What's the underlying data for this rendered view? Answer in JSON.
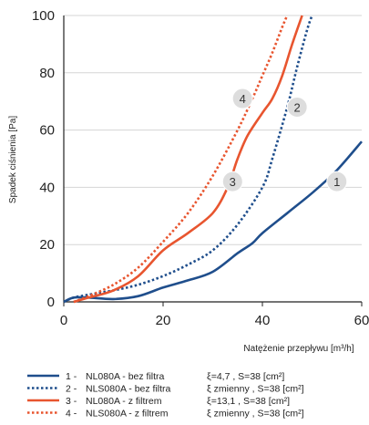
{
  "chart_data": {
    "type": "line",
    "xlabel": "Natężenie przepływu [m³/h]",
    "ylabel": "Spadek ciśnienia [Pa]",
    "xlim": [
      0,
      60
    ],
    "ylim": [
      0,
      100
    ],
    "xticks": [
      0,
      20,
      40,
      60
    ],
    "yticks": [
      0,
      20,
      40,
      60,
      80,
      100
    ],
    "grid": "horizontal",
    "legend_position": "bottom",
    "series": [
      {
        "marker": "1",
        "name": "NL080A - bez filtra",
        "number_label": "1 -",
        "param": "ξ=4,7 , S=38 [cm²]",
        "color": "#1f4e8c",
        "style": "solid",
        "marker_at": [
          55,
          42
        ],
        "x": [
          0,
          2,
          5,
          10,
          15,
          20,
          25,
          30,
          35,
          38,
          40,
          45,
          50,
          55,
          60
        ],
        "y": [
          0,
          1.5,
          1.5,
          1,
          2,
          5,
          7.5,
          10.5,
          17,
          20.5,
          24,
          31,
          38,
          46,
          56
        ]
      },
      {
        "marker": "2",
        "name": "NLS080A - bez filtra",
        "number_label": "2 -",
        "param": "ξ zmienny , S=38 [cm²]",
        "color": "#1f4e8c",
        "style": "dotted",
        "marker_at": [
          47,
          68
        ],
        "x": [
          0,
          2,
          5,
          10,
          15,
          20,
          25,
          30,
          35,
          40,
          42,
          45,
          47,
          49,
          50
        ],
        "y": [
          0,
          1.5,
          2.5,
          4,
          6,
          9,
          13,
          18,
          27,
          40,
          50,
          68,
          82,
          95,
          100
        ]
      },
      {
        "marker": "3",
        "name": "NL080A - z filtrem",
        "number_label": "3 -",
        "param": "ξ=13,1 , S=38 [cm²]",
        "color": "#e8552f",
        "style": "solid",
        "marker_at": [
          34,
          42
        ],
        "x": [
          2,
          5,
          10,
          15,
          20,
          25,
          30,
          33,
          35,
          37,
          40,
          42,
          44,
          46,
          48
        ],
        "y": [
          0,
          1.5,
          4,
          9,
          18,
          24,
          31,
          40,
          50,
          58,
          66,
          71,
          79,
          90,
          100
        ]
      },
      {
        "marker": "4",
        "name": "NLS080A - z filtrem",
        "number_label": "4 -",
        "param": "ξ zmienny , S=38 [cm²]",
        "color": "#e8552f",
        "style": "dotted",
        "marker_at": [
          36,
          71
        ],
        "x": [
          2,
          5,
          10,
          15,
          20,
          25,
          30,
          35,
          38,
          40,
          42,
          44,
          45
        ],
        "y": [
          0,
          2,
          6,
          12,
          21,
          31,
          44,
          60,
          71,
          79,
          87,
          96,
          100
        ]
      }
    ]
  }
}
